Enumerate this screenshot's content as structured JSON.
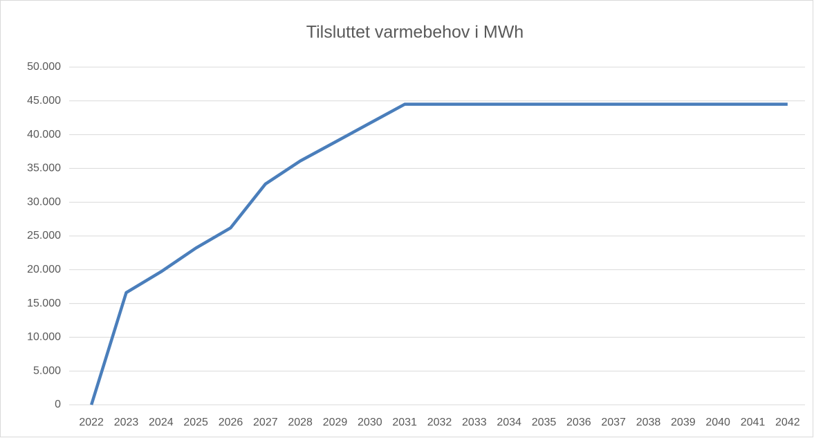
{
  "chart_data": {
    "type": "line",
    "title": "Tilsluttet varmebehov i MWh",
    "categories": [
      "2022",
      "2023",
      "2024",
      "2025",
      "2026",
      "2027",
      "2028",
      "2029",
      "2030",
      "2031",
      "2032",
      "2033",
      "2034",
      "2035",
      "2036",
      "2037",
      "2038",
      "2039",
      "2040",
      "2041",
      "2042"
    ],
    "series": [
      {
        "name": "Tilsluttet varmebehov",
        "color": "#4a7ebb",
        "values": [
          0,
          16600,
          19700,
          23200,
          26200,
          32700,
          36100,
          38900,
          41700,
          44500,
          44500,
          44500,
          44500,
          44500,
          44500,
          44500,
          44500,
          44500,
          44500,
          44500,
          44500
        ]
      }
    ],
    "ylim": [
      0,
      50000
    ],
    "yticks": [
      0,
      {
        "value": 5000,
        "label": "5.000"
      },
      {
        "value": 10000,
        "label": "10.000"
      },
      {
        "value": 15000,
        "label": "15.000"
      },
      {
        "value": 20000,
        "label": "20.000"
      },
      {
        "value": 25000,
        "label": "25.000"
      },
      {
        "value": 30000,
        "label": "30.000"
      },
      {
        "value": 35000,
        "label": "35.000"
      },
      {
        "value": 40000,
        "label": "40.000"
      },
      {
        "value": 45000,
        "label": "45.000"
      },
      {
        "value": 50000,
        "label": "50.000"
      }
    ],
    "grid": true
  }
}
